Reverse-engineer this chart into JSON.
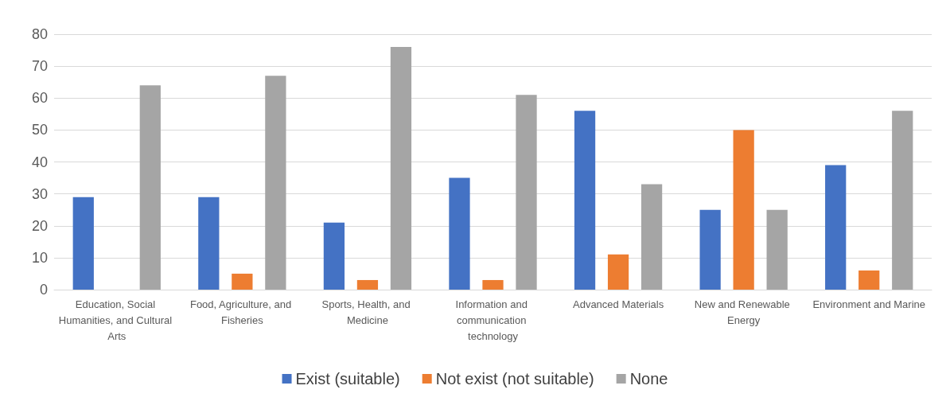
{
  "chart_data": {
    "type": "bar",
    "categories": [
      "Education, Social Humanities, and Cultural Arts",
      "Food, Agriculture, and Fisheries",
      "Sports, Health, and Medicine",
      "Information and communication technology",
      "Advanced Materials",
      "New and Renewable Energy",
      "Environment and Marine"
    ],
    "series": [
      {
        "name": "Exist (suitable)",
        "color": "#4472c4",
        "values": [
          29,
          29,
          21,
          35,
          56,
          25,
          39
        ]
      },
      {
        "name": "Not exist (not suitable)",
        "color": "#ed7d31",
        "values": [
          0,
          5,
          3,
          3,
          11,
          50,
          6
        ]
      },
      {
        "name": "None",
        "color": "#a5a5a5",
        "values": [
          64,
          67,
          76,
          61,
          33,
          25,
          56
        ]
      }
    ],
    "ylim": [
      0,
      80
    ],
    "yticks": [
      0,
      10,
      20,
      30,
      40,
      50,
      60,
      70,
      80
    ],
    "grid": "y",
    "legend": "bottom"
  }
}
